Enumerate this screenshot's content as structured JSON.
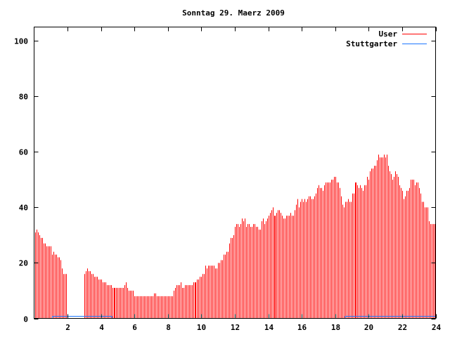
{
  "chart_data": {
    "type": "bar",
    "title": "Sonntag 29. Maerz 2009",
    "xlabel": "",
    "ylabel": "",
    "xlim": [
      0,
      24
    ],
    "ylim": [
      0,
      105
    ],
    "x_ticks": [
      "2",
      "4",
      "6",
      "8",
      "10",
      "12",
      "14",
      "16",
      "18",
      "20",
      "22",
      "24"
    ],
    "y_ticks": [
      "0",
      "20",
      "40",
      "60",
      "80",
      "100"
    ],
    "grid": false,
    "legend_position": "top-right",
    "series": [
      {
        "name": "User",
        "color": "#ff0000",
        "style": "impulses",
        "interval_minutes": 5,
        "start_minute": 5,
        "values": [
          31,
          32,
          31,
          30,
          29,
          29,
          27,
          27,
          26,
          26,
          26,
          26,
          23,
          24,
          23,
          23,
          22,
          22,
          21,
          18,
          16,
          16,
          16,
          null,
          null,
          null,
          null,
          null,
          null,
          null,
          null,
          null,
          null,
          null,
          null,
          16,
          17,
          18,
          17,
          17,
          16,
          16,
          15,
          15,
          15,
          14,
          14,
          14,
          13,
          13,
          13,
          12,
          12,
          12,
          12,
          11,
          11,
          11,
          11,
          11,
          11,
          11,
          11,
          11,
          12,
          13,
          11,
          10,
          10,
          10,
          10,
          8,
          8,
          8,
          8,
          8,
          8,
          8,
          8,
          8,
          8,
          8,
          8,
          8,
          8,
          9,
          9,
          8,
          8,
          8,
          8,
          8,
          8,
          8,
          8,
          8,
          8,
          8,
          8,
          10,
          11,
          12,
          12,
          12,
          13,
          11,
          11,
          12,
          12,
          12,
          12,
          12,
          12,
          13,
          13,
          13,
          14,
          14,
          15,
          15,
          16,
          16,
          19,
          18,
          19,
          19,
          19,
          19,
          19,
          18,
          18,
          20,
          20,
          21,
          21,
          23,
          23,
          24,
          24,
          27,
          29,
          29,
          30,
          33,
          34,
          34,
          33,
          34,
          36,
          35,
          36,
          33,
          34,
          34,
          33,
          33,
          34,
          34,
          33,
          33,
          32,
          32,
          35,
          36,
          34,
          35,
          36,
          37,
          38,
          39,
          40,
          37,
          37,
          38,
          39,
          39,
          38,
          37,
          36,
          36,
          37,
          37,
          37,
          38,
          37,
          37,
          39,
          41,
          43,
          40,
          42,
          43,
          42,
          43,
          42,
          43,
          44,
          44,
          43,
          43,
          44,
          45,
          47,
          48,
          47,
          47,
          46,
          48,
          49,
          49,
          49,
          49,
          50,
          50,
          51,
          51,
          49,
          49,
          47,
          44,
          41,
          40,
          42,
          42,
          43,
          42,
          42,
          45,
          45,
          49,
          49,
          48,
          47,
          48,
          47,
          46,
          48,
          48,
          51,
          50,
          53,
          54,
          54,
          55,
          55,
          57,
          59,
          58,
          58,
          58,
          59,
          58,
          59,
          55,
          53,
          52,
          50,
          51,
          53,
          52,
          51,
          48,
          47,
          46,
          43,
          44,
          46,
          46,
          47,
          50,
          50,
          50,
          48,
          49,
          49,
          47,
          45,
          42,
          42,
          40,
          40,
          40,
          35,
          34,
          34,
          34,
          34
        ]
      },
      {
        "name": "Stuttgarter",
        "color": "#1e78ff",
        "style": "steps",
        "ranges": [
          {
            "from": 1.1,
            "to": 4.65,
            "value": 1
          },
          {
            "from": 18.6,
            "to": 24,
            "value": 1
          }
        ]
      }
    ]
  }
}
